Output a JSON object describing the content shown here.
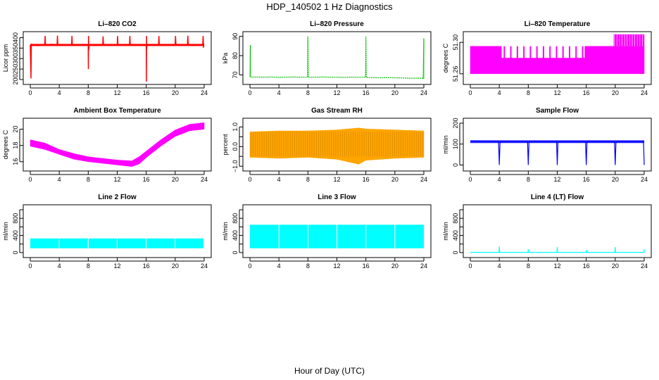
{
  "figure": {
    "title": "HDP_140502  1 Hz Diagnostics",
    "xlabel": "Hour of Day (UTC)"
  },
  "chart_data": [
    {
      "id": "co2",
      "type": "line",
      "title": "Li–820 CO2",
      "ylabel": "Licor ppm",
      "color": "#ff0000",
      "xlim": [
        0,
        24
      ],
      "xticks": [
        0,
        4,
        8,
        12,
        16,
        20,
        24
      ],
      "ylim": [
        190,
        415
      ],
      "yticks": [
        200,
        250,
        300,
        350,
        400
      ],
      "x": [
        0,
        0.1,
        0.15,
        0.2,
        1,
        2,
        2.05,
        2.1,
        3,
        3.7,
        3.75,
        3.8,
        4.7,
        5.7,
        5.75,
        5.8,
        7,
        8,
        8.02,
        8.04,
        8.06,
        8.1,
        9,
        10,
        10.05,
        10.1,
        11.5,
        12,
        12.05,
        12.1,
        13,
        13.7,
        13.75,
        13.8,
        15,
        16,
        16.02,
        16.04,
        16.06,
        16.1,
        17,
        17.7,
        17.75,
        17.8,
        19,
        20,
        20.05,
        20.1,
        21,
        21.7,
        21.75,
        21.8,
        23,
        23.8,
        23.85,
        23.9,
        24
      ],
      "y": [
        365,
        205,
        370,
        365,
        362,
        365,
        408,
        365,
        368,
        365,
        410,
        365,
        364,
        365,
        408,
        365,
        367,
        365,
        250,
        408,
        340,
        365,
        363,
        365,
        406,
        365,
        366,
        365,
        408,
        365,
        367,
        365,
        408,
        365,
        366,
        365,
        190,
        408,
        345,
        365,
        364,
        365,
        408,
        365,
        366,
        365,
        408,
        365,
        367,
        365,
        409,
        365,
        363,
        365,
        408,
        355,
        358
      ]
    },
    {
      "id": "pressure",
      "type": "line",
      "title": "Li–820 Pressure",
      "ylabel": "kPa",
      "color": "#00bb00",
      "xlim": [
        0,
        24
      ],
      "xticks": [
        0,
        4,
        8,
        12,
        16,
        20,
        24
      ],
      "ylim": [
        66.5,
        91
      ],
      "yticks": [
        70,
        80,
        90
      ],
      "x": [
        0,
        0.05,
        0.1,
        0.2,
        1,
        2,
        3,
        4,
        5,
        6,
        7,
        7.95,
        8,
        8.05,
        9,
        10,
        11,
        12,
        13,
        14,
        15,
        15.95,
        16,
        16.05,
        17,
        18,
        19,
        20,
        21,
        22,
        23,
        23.9,
        24,
        24
      ],
      "y": [
        69,
        85.5,
        69,
        68.8,
        68.9,
        68.8,
        68.9,
        68.7,
        68.8,
        68.9,
        68.8,
        68.8,
        90,
        68.8,
        68.8,
        68.9,
        68.8,
        68.8,
        68.7,
        68.8,
        68.8,
        68.8,
        90,
        68.7,
        68.6,
        68.5,
        68.6,
        68.5,
        68.4,
        68.3,
        68.3,
        68.2,
        89,
        68.2
      ]
    },
    {
      "id": "licor_temp",
      "type": "band",
      "title": "Li–820 Temperature",
      "ylabel": "degrees C",
      "color": "#ff00ff",
      "xlim": [
        0,
        24
      ],
      "xticks": [
        0,
        4,
        8,
        12,
        16,
        20,
        24
      ],
      "ylim": [
        51.25,
        51.31
      ],
      "yticks": [
        51.26,
        51.3
      ],
      "ytick_labels": [
        "51.26",
        "51.30"
      ],
      "x": [
        0,
        4.3,
        4.31,
        15.8,
        15.81,
        19.8,
        19.81,
        24
      ],
      "low": [
        51.26,
        51.26,
        51.26,
        51.26,
        51.26,
        51.26,
        51.26,
        51.26
      ],
      "high": [
        51.295,
        51.295,
        51.28,
        51.28,
        51.295,
        51.295,
        51.31,
        51.31
      ]
    },
    {
      "id": "ambient_temp",
      "type": "band",
      "title": "Ambient Box Temperature",
      "ylabel": "degrees C",
      "color": "#ff00ff",
      "xlim": [
        0,
        24
      ],
      "xticks": [
        0,
        4,
        8,
        12,
        16,
        20,
        24
      ],
      "ylim": [
        15.2,
        21
      ],
      "yticks": [
        16,
        18,
        20
      ],
      "x": [
        0,
        2,
        4,
        6,
        8,
        10,
        12,
        14,
        15,
        16,
        18,
        20,
        22,
        24
      ],
      "low": [
        17.9,
        17.5,
        16.9,
        16.3,
        16.0,
        15.8,
        15.6,
        15.4,
        15.7,
        16.5,
        17.9,
        19.1,
        19.8,
        20.0
      ],
      "high": [
        18.7,
        18.3,
        17.5,
        17.0,
        16.6,
        16.4,
        16.2,
        16.1,
        16.6,
        17.3,
        18.7,
        19.9,
        20.6,
        20.8
      ]
    },
    {
      "id": "rh",
      "type": "band",
      "title": "Gas Stream RH",
      "ylabel": "percent",
      "color": "#ffa500",
      "xlim": [
        0,
        24
      ],
      "xticks": [
        0,
        4,
        8,
        12,
        16,
        20,
        24
      ],
      "ylim": [
        -1.1,
        1.3
      ],
      "yticks": [
        -1,
        -0.5,
        0,
        0.5,
        1
      ],
      "ytick_labels": [
        "−1.0",
        "",
        "0.0",
        "",
        "1.0"
      ],
      "x": [
        0,
        4,
        8,
        12,
        15,
        16,
        20,
        24
      ],
      "low": [
        -0.55,
        -0.6,
        -0.55,
        -0.65,
        -0.9,
        -0.7,
        -0.6,
        -0.55
      ],
      "high": [
        0.75,
        0.8,
        0.8,
        0.85,
        0.95,
        0.9,
        0.85,
        0.8
      ]
    },
    {
      "id": "sample_flow",
      "type": "line",
      "title": "Sample Flow",
      "ylabel": "ml/min",
      "color": "#0000ff",
      "xlim": [
        0,
        24
      ],
      "xticks": [
        0,
        4,
        8,
        12,
        16,
        20,
        24
      ],
      "ylim": [
        -15,
        210
      ],
      "yticks": [
        0,
        100,
        200
      ],
      "x": [
        0,
        3.9,
        4,
        4.1,
        7.9,
        8,
        8.1,
        11.9,
        12,
        12.1,
        15.9,
        16,
        16.1,
        19.9,
        20,
        20.1,
        23.9,
        24
      ],
      "y": [
        115,
        112,
        0,
        112,
        112,
        0,
        112,
        112,
        0,
        112,
        112,
        0,
        113,
        112,
        0,
        112,
        112,
        0
      ],
      "band_low": 105,
      "band_high": 118
    },
    {
      "id": "line2_flow",
      "type": "segments",
      "title": "Line 2 Flow",
      "ylabel": "ml/min",
      "color": "#00ffff",
      "xlim": [
        0,
        24
      ],
      "xticks": [
        0,
        4,
        8,
        12,
        16,
        20,
        24
      ],
      "ylim": [
        -50,
        1050
      ],
      "yticks": [
        0,
        200,
        400,
        600,
        800,
        1000
      ],
      "ytick_labels": [
        "0",
        "",
        "400",
        "",
        "800",
        ""
      ],
      "segments": [
        [
          0,
          3.95
        ],
        [
          4.05,
          7.95
        ],
        [
          8.05,
          11.95
        ],
        [
          12.05,
          15.95
        ],
        [
          16.05,
          19.95
        ],
        [
          20.05,
          23.9
        ]
      ],
      "low": 100,
      "high": 330
    },
    {
      "id": "line3_flow",
      "type": "segments",
      "title": "Line 3 Flow",
      "ylabel": "ml/min",
      "color": "#00ffff",
      "xlim": [
        0,
        24
      ],
      "xticks": [
        0,
        4,
        8,
        12,
        16,
        20,
        24
      ],
      "ylim": [
        -50,
        1050
      ],
      "yticks": [
        0,
        200,
        400,
        600,
        800,
        1000
      ],
      "ytick_labels": [
        "0",
        "",
        "400",
        "",
        "800",
        ""
      ],
      "segments": [
        [
          0,
          3.95
        ],
        [
          4.05,
          7.95
        ],
        [
          8.05,
          11.95
        ],
        [
          12.05,
          15.95
        ],
        [
          16.05,
          19.95
        ],
        [
          20.05,
          24
        ]
      ],
      "low": 100,
      "high": 650
    },
    {
      "id": "line4_flow",
      "type": "line",
      "title": "Line 4 (LT) Flow",
      "ylabel": "ml/min",
      "color": "#00ffff",
      "xlim": [
        0,
        24
      ],
      "xticks": [
        0,
        4,
        8,
        12,
        16,
        20,
        24
      ],
      "ylim": [
        -50,
        1050
      ],
      "yticks": [
        0,
        200,
        400,
        600,
        800,
        1000
      ],
      "ytick_labels": [
        "0",
        "",
        "400",
        "",
        "800",
        ""
      ],
      "x": [
        0,
        3.95,
        4,
        4.05,
        7.95,
        8,
        8.05,
        11.95,
        12,
        12.05,
        15.95,
        16,
        16.05,
        19.95,
        20,
        20.05,
        23.95,
        24,
        24
      ],
      "y": [
        5,
        5,
        140,
        5,
        5,
        80,
        5,
        5,
        130,
        5,
        5,
        60,
        5,
        5,
        130,
        5,
        5,
        80,
        5
      ]
    }
  ]
}
